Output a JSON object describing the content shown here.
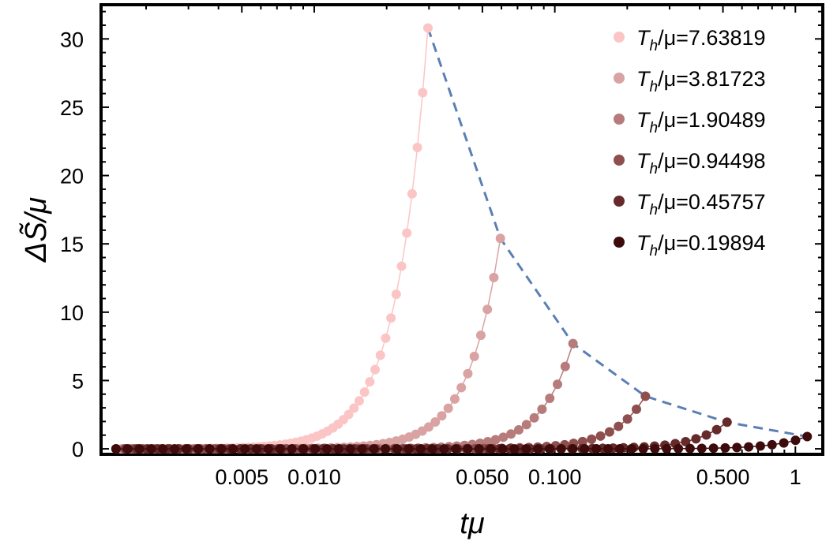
{
  "chart_data": {
    "type": "scatter",
    "title": "",
    "xlabel": "tμ",
    "ylabel": "ΔS̃/μ",
    "x_scale": "log",
    "xlim": [
      0.0013,
      1.3
    ],
    "ylim": [
      -0.4,
      32.5
    ],
    "x_ticks": [
      {
        "value": 0.005,
        "label": "0.005"
      },
      {
        "value": 0.01,
        "label": "0.010"
      },
      {
        "value": 0.05,
        "label": "0.050"
      },
      {
        "value": 0.1,
        "label": "0.100"
      },
      {
        "value": 0.5,
        "label": "0.500"
      },
      {
        "value": 1,
        "label": "1"
      }
    ],
    "y_ticks": [
      {
        "value": 0,
        "label": "0"
      },
      {
        "value": 5,
        "label": "5"
      },
      {
        "value": 10,
        "label": "10"
      },
      {
        "value": 15,
        "label": "15"
      },
      {
        "value": 20,
        "label": "20"
      },
      {
        "value": 25,
        "label": "25"
      },
      {
        "value": 30,
        "label": "30"
      }
    ],
    "legend_position": "top-right",
    "grid": false,
    "curve_shape": "y = peak * exp(k * (ln(x) - ln(x_peak))), sampled in log x",
    "points_per_series": 60,
    "series": [
      {
        "name": "T_h/μ=7.63819",
        "label_main": "T",
        "label_sub": "h",
        "label_tail": "/μ=7.63819",
        "color": "#fcc5c5",
        "x_start": 0.0015,
        "x_peak": 0.0297,
        "peak": 30.8,
        "k": 3.3
      },
      {
        "name": "T_h/μ=3.81723",
        "label_main": "T",
        "label_sub": "h",
        "label_tail": "/μ=3.81723",
        "color": "#d9a3a3",
        "x_start": 0.0015,
        "x_peak": 0.0594,
        "peak": 15.4,
        "k": 3.3
      },
      {
        "name": "T_h/μ=1.90489",
        "label_main": "T",
        "label_sub": "h",
        "label_tail": "/μ=1.90489",
        "color": "#b77b7b",
        "x_start": 0.0015,
        "x_peak": 0.119,
        "peak": 7.7,
        "k": 3.3
      },
      {
        "name": "T_h/μ=0.94498",
        "label_main": "T",
        "label_sub": "h",
        "label_tail": "/μ=0.94498",
        "color": "#8f4f4f",
        "x_start": 0.0015,
        "x_peak": 0.238,
        "peak": 3.85,
        "k": 3.3
      },
      {
        "name": "T_h/μ=0.45757",
        "label_main": "T",
        "label_sub": "h",
        "label_tail": "/μ=0.45757",
        "color": "#672a2a",
        "x_start": 0.0015,
        "x_peak": 0.52,
        "peak": 1.95,
        "k": 3.3
      },
      {
        "name": "T_h/μ=0.19894",
        "label_main": "T",
        "label_sub": "h",
        "label_tail": "/μ=0.19894",
        "color": "#3d0b0b",
        "x_start": 0.0015,
        "x_peak": 1.12,
        "peak": 0.9,
        "k": 3.3
      }
    ],
    "envelope": {
      "style": "dashed",
      "color": "#5b7fb5",
      "x": [
        0.0297,
        0.0594,
        0.119,
        0.238,
        0.52,
        1.12
      ],
      "y": [
        30.8,
        15.4,
        7.7,
        3.85,
        1.95,
        0.9
      ]
    }
  }
}
